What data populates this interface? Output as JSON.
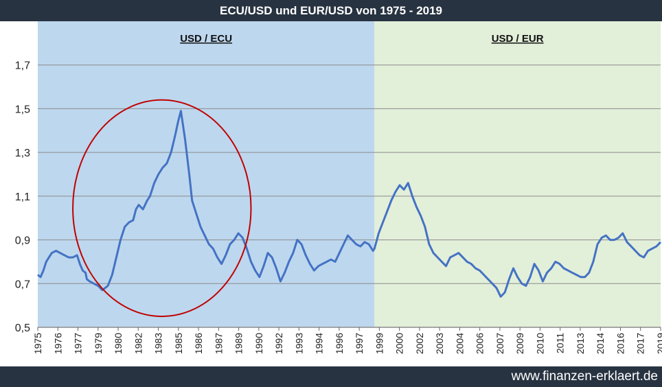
{
  "title": "ECU/USD und EUR/USD von 1975 - 2019",
  "footer": {
    "website": "www.finanzen-erklaert.de"
  },
  "colors": {
    "header_bg": "#283341",
    "region_ecu": "#bdd7ee",
    "region_eur": "#e2efd9",
    "line": "#4472c4",
    "circle": "#c00000",
    "grid": "#8c8c8c"
  },
  "chart_data": {
    "type": "line",
    "title": "ECU/USD und EUR/USD von 1975 - 2019",
    "xlabel": "",
    "ylabel": "",
    "ylim": [
      0.5,
      1.9
    ],
    "xlim": [
      1975.0,
      2019.4
    ],
    "y_ticks": [
      "0,5",
      "0,7",
      "0,9",
      "1,1",
      "1,3",
      "1,5",
      "1,7"
    ],
    "y_tick_values": [
      0.5,
      0.7,
      0.9,
      1.1,
      1.3,
      1.5,
      1.7
    ],
    "x_tick_labels": [
      "1975",
      "1976",
      "1977",
      "1979",
      "1980",
      "1982",
      "1983",
      "1985",
      "1986",
      "1987",
      "1989",
      "1990",
      "1992",
      "1993",
      "1994",
      "1996",
      "1997",
      "1999",
      "2000",
      "2002",
      "2003",
      "2004",
      "2006",
      "2007",
      "2009",
      "2010",
      "2011",
      "2013",
      "2014",
      "2016",
      "2017",
      "2019"
    ],
    "grid": true,
    "legend": "none",
    "regions": [
      {
        "label": "USD / ECU",
        "x_start": 1975.0,
        "x_end": 1999.0
      },
      {
        "label": "USD / EUR",
        "x_start": 1999.0,
        "x_end": 2019.4
      }
    ],
    "annotation": {
      "shape": "ellipse",
      "x_from": 1977.5,
      "x_end": 1990.2,
      "y_from": 0.55,
      "y_end": 1.54
    },
    "series": [
      {
        "x": [
          1975.0,
          1975.2,
          1975.4,
          1975.6,
          1975.8,
          1976.0,
          1976.3,
          1976.6,
          1976.9,
          1977.2,
          1977.5,
          1977.8,
          1978.0,
          1978.2,
          1978.4,
          1978.5,
          1978.7,
          1979.0,
          1979.3,
          1979.6,
          1980.0,
          1980.3,
          1980.6,
          1980.9,
          1981.2,
          1981.5,
          1981.8,
          1982.0,
          1982.2,
          1982.5,
          1982.8,
          1983.0,
          1983.3,
          1983.6,
          1983.9,
          1984.2,
          1984.5,
          1984.8,
          1985.0,
          1985.2,
          1985.5,
          1985.8,
          1986.0,
          1986.3,
          1986.6,
          1986.9,
          1987.2,
          1987.5,
          1987.8,
          1988.1,
          1988.4,
          1988.7,
          1989.0,
          1989.3,
          1989.6,
          1989.9,
          1990.2,
          1990.5,
          1990.8,
          1991.1,
          1991.4,
          1991.7,
          1992.0,
          1992.3,
          1992.6,
          1992.9,
          1993.2,
          1993.5,
          1993.8,
          1994.1,
          1994.4,
          1994.7,
          1995.0,
          1995.3,
          1995.6,
          1995.9,
          1996.2,
          1996.5,
          1996.8,
          1997.1,
          1997.4,
          1997.7,
          1998.0,
          1998.3,
          1998.6,
          1998.9,
          1999.0,
          1999.3,
          1999.6,
          1999.9,
          2000.2,
          2000.5,
          2000.8,
          2001.1,
          2001.4,
          2001.7,
          2002.0,
          2002.3,
          2002.6,
          2002.9,
          2003.2,
          2003.5,
          2003.8,
          2004.1,
          2004.4,
          2004.7,
          2005.0,
          2005.3,
          2005.6,
          2005.9,
          2006.2,
          2006.5,
          2006.8,
          2007.1,
          2007.4,
          2007.7,
          2008.0,
          2008.3,
          2008.6,
          2008.9,
          2009.2,
          2009.5,
          2009.8,
          2010.1,
          2010.4,
          2010.7,
          2011.0,
          2011.3,
          2011.6,
          2011.9,
          2012.2,
          2012.5,
          2012.8,
          2013.1,
          2013.4,
          2013.7,
          2014.0,
          2014.3,
          2014.6,
          2014.9,
          2015.2,
          2015.5,
          2015.8,
          2016.1,
          2016.4,
          2016.7,
          2017.0,
          2017.3,
          2017.6,
          2017.9,
          2018.2,
          2018.5,
          2018.8,
          2019.1,
          2019.4
        ],
        "y": [
          0.74,
          0.73,
          0.76,
          0.8,
          0.82,
          0.84,
          0.85,
          0.84,
          0.83,
          0.82,
          0.82,
          0.83,
          0.79,
          0.76,
          0.75,
          0.72,
          0.71,
          0.7,
          0.69,
          0.67,
          0.69,
          0.74,
          0.82,
          0.9,
          0.96,
          0.98,
          0.99,
          1.04,
          1.06,
          1.04,
          1.08,
          1.1,
          1.16,
          1.2,
          1.23,
          1.25,
          1.3,
          1.38,
          1.44,
          1.49,
          1.36,
          1.2,
          1.08,
          1.02,
          0.96,
          0.92,
          0.88,
          0.86,
          0.82,
          0.79,
          0.83,
          0.88,
          0.9,
          0.93,
          0.91,
          0.86,
          0.8,
          0.76,
          0.73,
          0.78,
          0.84,
          0.82,
          0.77,
          0.71,
          0.75,
          0.8,
          0.84,
          0.9,
          0.88,
          0.83,
          0.79,
          0.76,
          0.78,
          0.79,
          0.8,
          0.81,
          0.8,
          0.84,
          0.88,
          0.92,
          0.9,
          0.88,
          0.87,
          0.89,
          0.88,
          0.85,
          0.86,
          0.93,
          0.98,
          1.03,
          1.08,
          1.12,
          1.15,
          1.13,
          1.16,
          1.1,
          1.05,
          1.01,
          0.96,
          0.88,
          0.84,
          0.82,
          0.8,
          0.78,
          0.82,
          0.83,
          0.84,
          0.82,
          0.8,
          0.79,
          0.77,
          0.76,
          0.74,
          0.72,
          0.7,
          0.68,
          0.64,
          0.66,
          0.72,
          0.77,
          0.73,
          0.7,
          0.69,
          0.73,
          0.79,
          0.76,
          0.71,
          0.75,
          0.77,
          0.8,
          0.79,
          0.77,
          0.76,
          0.75,
          0.74,
          0.73,
          0.73,
          0.75,
          0.8,
          0.88,
          0.91,
          0.92,
          0.9,
          0.9,
          0.91,
          0.93,
          0.89,
          0.87,
          0.85,
          0.83,
          0.82,
          0.85,
          0.86,
          0.87,
          0.89
        ]
      }
    ]
  }
}
